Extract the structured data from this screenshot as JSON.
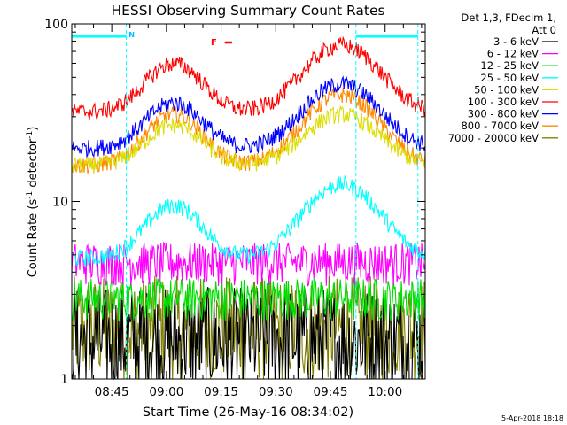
{
  "chart_data": {
    "type": "line",
    "title": "HESSI Observing Summary Count Rates",
    "xlabel": "Start Time (26-May-16 08:34:02)",
    "ylabel": "Count Rate (s^-1 detector^-1)",
    "ylabel_main": "Count Rate (s",
    "ylabel_sup1": "-1",
    "ylabel_mid": " detector",
    "ylabel_sup2": "-1",
    "ylabel_end": ")",
    "y_scale": "log",
    "ylim": [
      1,
      100
    ],
    "y_ticks": [
      "1",
      "10",
      "100"
    ],
    "x_range_minutes": [
      "08:34",
      "10:11"
    ],
    "x_ticks": [
      "08:45",
      "09:00",
      "09:15",
      "09:30",
      "09:45",
      "10:00"
    ],
    "legend_header": [
      "Det 1,3, FDecim 1,",
      "Att 0"
    ],
    "legend_placement": "right",
    "series": [
      {
        "name": "3 - 6 keV",
        "color": "#000000",
        "profile": "low1",
        "base": 1.9
      },
      {
        "name": "6 - 12 keV",
        "color": "#ff00ff",
        "profile": "flat",
        "base": 4.6
      },
      {
        "name": "12 - 25 keV",
        "color": "#00dd00",
        "profile": "flat",
        "base": 2.9
      },
      {
        "name": "25 - 50 keV",
        "color": "#00ffff",
        "profile": "hump",
        "base": 4.8,
        "peak1": 9.5,
        "peak2": 12.5
      },
      {
        "name": "50 - 100 keV",
        "color": "#dddd00",
        "profile": "hump",
        "base": 16,
        "peak1": 27,
        "peak2": 31
      },
      {
        "name": "100 - 300 keV",
        "color": "#ff0000",
        "profile": "hump",
        "base": 32,
        "peak1": 60,
        "peak2": 76
      },
      {
        "name": "300 - 800 keV",
        "color": "#0000ff",
        "profile": "hump",
        "base": 20,
        "peak1": 36,
        "peak2": 46
      },
      {
        "name": "800 - 7000 keV",
        "color": "#ff8800",
        "profile": "hump",
        "base": 16,
        "peak1": 31,
        "peak2": 40
      },
      {
        "name": "7000 - 20000 keV",
        "color": "#808000",
        "profile": "low2",
        "base": 2.2
      }
    ],
    "annotations": [
      {
        "text": "N",
        "color": "#00bbff",
        "x": "08:49"
      },
      {
        "text": "F",
        "color": "#ff0000",
        "x": "09:14"
      }
    ],
    "night_intervals": [
      [
        "08:34",
        "08:49"
      ],
      [
        "09:52",
        "10:09"
      ]
    ],
    "saa_flag": [
      "09:16",
      "09:18"
    ],
    "vlines": [
      "08:49",
      "09:52",
      "10:09"
    ]
  },
  "footer": {
    "date": "5-Apr-2018 18:18"
  }
}
